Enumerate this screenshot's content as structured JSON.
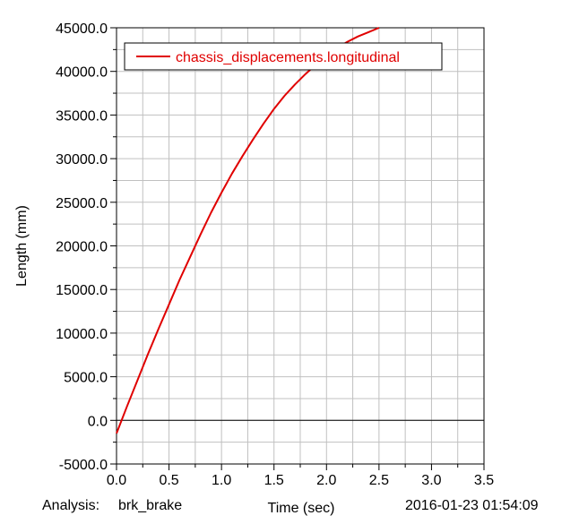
{
  "chart_data": {
    "type": "line",
    "xlabel": "Time (sec)",
    "ylabel": "Length (mm)",
    "xlim": [
      0.0,
      3.5
    ],
    "ylim": [
      -5000.0,
      45000.0
    ],
    "x_ticks": [
      "0.0",
      "0.5",
      "1.0",
      "1.5",
      "2.0",
      "2.5",
      "3.0",
      "3.5"
    ],
    "y_ticks": [
      "-5000.0",
      "0.0",
      "5000.0",
      "10000.0",
      "15000.0",
      "20000.0",
      "25000.0",
      "30000.0",
      "35000.0",
      "40000.0",
      "45000.0"
    ],
    "grid": true,
    "legend_position": "top-left",
    "series": [
      {
        "name": "chassis_displacements.longitudinal",
        "color": "#e00000",
        "x": [
          0.0,
          0.1,
          0.2,
          0.3,
          0.4,
          0.5,
          0.6,
          0.7,
          0.8,
          0.9,
          1.0,
          1.1,
          1.2,
          1.3,
          1.4,
          1.5,
          1.6,
          1.7,
          1.8,
          1.9,
          2.0,
          2.1,
          2.2,
          2.3,
          2.4,
          2.5
        ],
        "y": [
          -1500,
          1600,
          4600,
          7600,
          10500,
          13300,
          16100,
          18700,
          21300,
          23800,
          26100,
          28300,
          30300,
          32200,
          34000,
          35700,
          37200,
          38500,
          39700,
          40800,
          41900,
          42700,
          43400,
          44000,
          44500,
          45000
        ]
      }
    ]
  },
  "footer": {
    "analysis_label": "Analysis:",
    "analysis_name": "brk_brake",
    "timestamp": "2016-01-23 01:54:09"
  }
}
